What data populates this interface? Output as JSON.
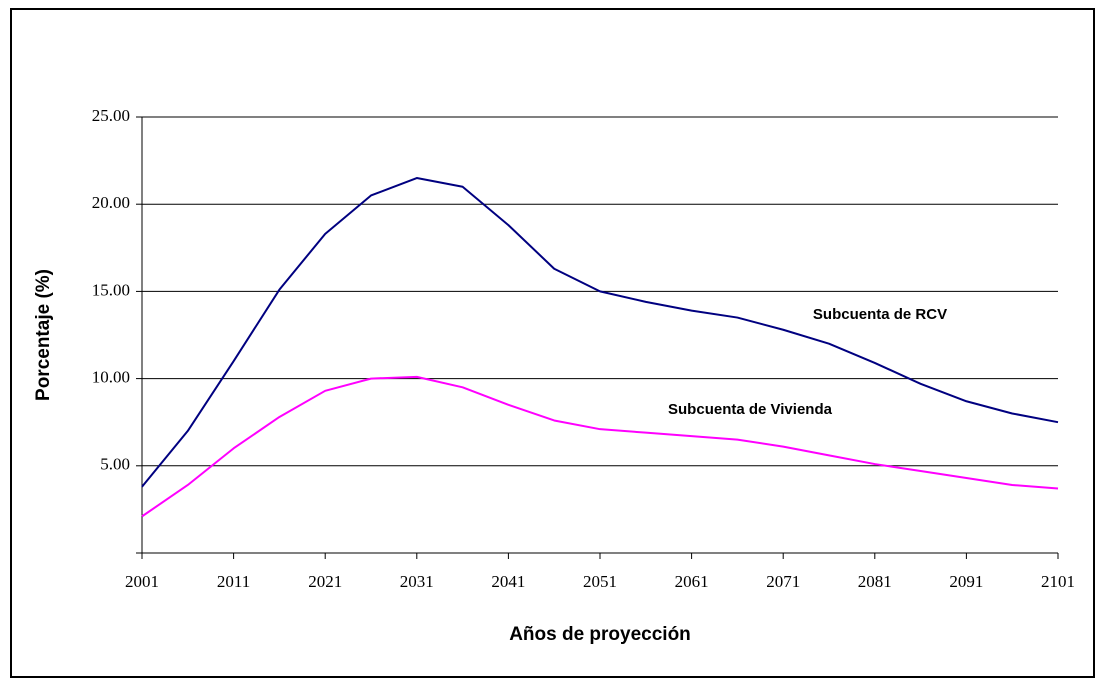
{
  "chart_data": {
    "type": "line",
    "x_label": "Años de proyección",
    "y_label": "Porcentaje (%)",
    "x": [
      2001,
      2006,
      2011,
      2016,
      2021,
      2026,
      2031,
      2036,
      2041,
      2046,
      2051,
      2056,
      2061,
      2066,
      2071,
      2076,
      2081,
      2086,
      2091,
      2096,
      2101
    ],
    "series": [
      {
        "name": "Subcuenta de RCV",
        "color": "#000080",
        "values": [
          3.8,
          7.0,
          11.0,
          15.1,
          18.3,
          20.5,
          21.5,
          21.0,
          18.8,
          16.3,
          15.0,
          14.4,
          13.9,
          13.5,
          12.8,
          12.0,
          10.9,
          9.7,
          8.7,
          8.0,
          7.5
        ]
      },
      {
        "name": "Subcuenta de Vivienda",
        "color": "#ff00ff",
        "values": [
          2.1,
          3.9,
          6.0,
          7.8,
          9.3,
          10.0,
          10.1,
          9.5,
          8.5,
          7.6,
          7.1,
          6.9,
          6.7,
          6.5,
          6.1,
          5.6,
          5.1,
          4.7,
          4.3,
          3.9,
          3.7
        ]
      }
    ],
    "xlim": [
      2001,
      2101
    ],
    "xticks": [
      2001,
      2011,
      2021,
      2031,
      2041,
      2051,
      2061,
      2071,
      2081,
      2091,
      2101
    ],
    "ylim": [
      0,
      25
    ],
    "yticks": [
      {
        "value": 5,
        "label": "5.00"
      },
      {
        "value": 10,
        "label": "10.00"
      },
      {
        "value": 15,
        "label": "15.00"
      },
      {
        "value": 20,
        "label": "20.00"
      },
      {
        "value": 25,
        "label": "25.00"
      }
    ],
    "grid": true
  }
}
